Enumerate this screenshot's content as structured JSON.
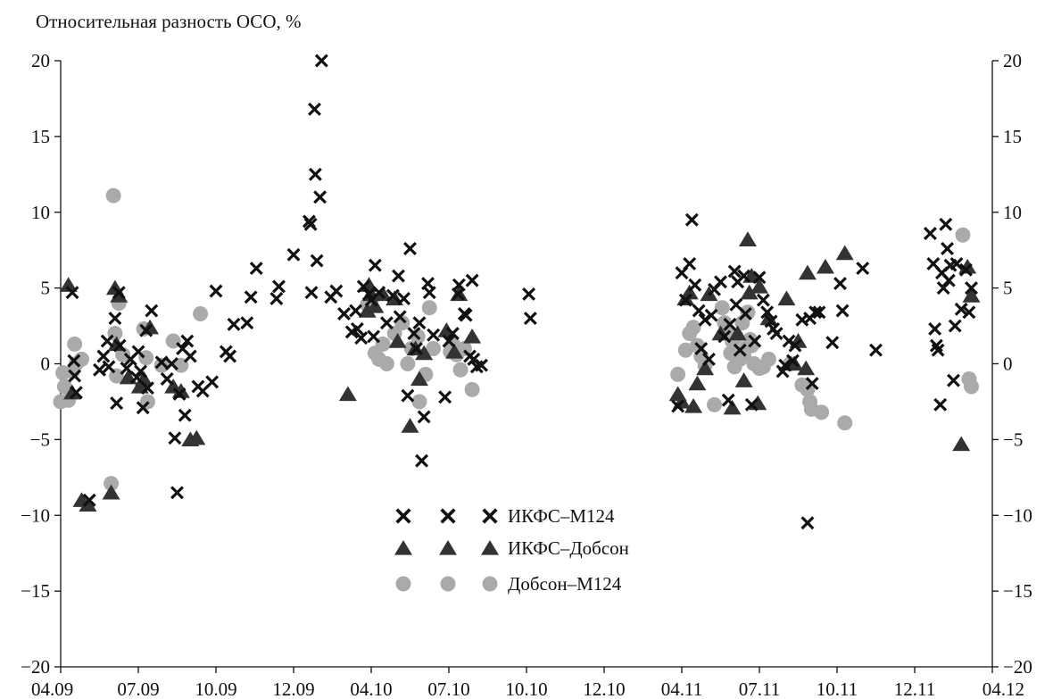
{
  "chart_data": {
    "type": "scatter",
    "title": "Относительная разность ОСО, %",
    "xlabel": "",
    "ylabel": "",
    "x_ticks": [
      "04.09",
      "07.09",
      "10.09",
      "12.09",
      "04.10",
      "07.10",
      "10.10",
      "12.10",
      "04.11",
      "07.11",
      "10.11",
      "12.11",
      "04.12"
    ],
    "xlim": [
      0,
      12
    ],
    "ylim": [
      -20,
      20
    ],
    "y_ticks": [
      -20,
      -15,
      -10,
      -5,
      0,
      5,
      10,
      15,
      20
    ],
    "y_tick_labels": [
      "−20",
      "−15",
      "−10",
      "−5",
      "0",
      "5",
      "10",
      "15",
      "20"
    ],
    "mirror_y_axis_right": true,
    "grid": false,
    "legend_position": "center",
    "series": [
      {
        "name": "ИКФС–М124",
        "marker": "cross",
        "color": "#111111",
        "points": [
          [
            0.15,
            4.7
          ],
          [
            0.17,
            0.2
          ],
          [
            0.18,
            -0.8
          ],
          [
            0.2,
            -1.9
          ],
          [
            0.37,
            -9.0
          ],
          [
            0.5,
            -0.4
          ],
          [
            0.55,
            0.5
          ],
          [
            0.6,
            1.5
          ],
          [
            0.62,
            -0.2
          ],
          [
            0.7,
            3.0
          ],
          [
            0.72,
            -2.6
          ],
          [
            0.75,
            4.7
          ],
          [
            0.76,
            1.2
          ],
          [
            0.85,
            -0.3
          ],
          [
            0.9,
            0.3
          ],
          [
            0.98,
            -0.9
          ],
          [
            1.0,
            0.8
          ],
          [
            1.03,
            -0.5
          ],
          [
            1.06,
            -2.9
          ],
          [
            1.1,
            2.2
          ],
          [
            1.12,
            -1.6
          ],
          [
            1.17,
            3.5
          ],
          [
            1.3,
            0.1
          ],
          [
            1.37,
            -1.0
          ],
          [
            1.43,
            0.0
          ],
          [
            1.47,
            -4.9
          ],
          [
            1.5,
            -8.5
          ],
          [
            1.53,
            -2.0
          ],
          [
            1.57,
            1.0
          ],
          [
            1.6,
            -3.4
          ],
          [
            1.63,
            1.5
          ],
          [
            1.67,
            0.5
          ],
          [
            1.77,
            -1.5
          ],
          [
            1.83,
            -1.8
          ],
          [
            1.95,
            -1.2
          ],
          [
            2.0,
            4.8
          ],
          [
            2.13,
            0.8
          ],
          [
            2.18,
            0.5
          ],
          [
            2.23,
            2.6
          ],
          [
            2.4,
            2.7
          ],
          [
            2.45,
            4.4
          ],
          [
            2.52,
            6.3
          ],
          [
            2.78,
            4.3
          ],
          [
            2.81,
            5.1
          ],
          [
            3.0,
            7.2
          ],
          [
            3.2,
            9.4
          ],
          [
            3.22,
            9.2
          ],
          [
            3.23,
            4.7
          ],
          [
            3.27,
            16.8
          ],
          [
            3.28,
            12.5
          ],
          [
            3.3,
            6.8
          ],
          [
            3.34,
            11.0
          ],
          [
            3.36,
            20.0
          ],
          [
            3.48,
            4.4
          ],
          [
            3.55,
            4.8
          ],
          [
            3.65,
            3.3
          ],
          [
            3.75,
            2.1
          ],
          [
            3.8,
            3.5
          ],
          [
            3.82,
            2.3
          ],
          [
            3.87,
            1.7
          ],
          [
            3.9,
            5.1
          ],
          [
            3.97,
            4.6
          ],
          [
            4.0,
            4.2
          ],
          [
            4.03,
            1.8
          ],
          [
            4.05,
            6.5
          ],
          [
            4.1,
            4.7
          ],
          [
            4.2,
            2.7
          ],
          [
            4.28,
            4.5
          ],
          [
            4.35,
            5.8
          ],
          [
            4.37,
            3.1
          ],
          [
            4.42,
            4.3
          ],
          [
            4.47,
            -2.1
          ],
          [
            4.5,
            7.6
          ],
          [
            4.55,
            2.0
          ],
          [
            4.58,
            1.0
          ],
          [
            4.62,
            2.7
          ],
          [
            4.65,
            -6.4
          ],
          [
            4.68,
            -3.5
          ],
          [
            4.73,
            5.3
          ],
          [
            4.75,
            4.7
          ],
          [
            4.8,
            1.9
          ],
          [
            4.95,
            -2.2
          ],
          [
            5.0,
            1.5
          ],
          [
            5.05,
            2.0
          ],
          [
            5.12,
            4.6
          ],
          [
            5.13,
            5.2
          ],
          [
            5.2,
            3.3
          ],
          [
            5.22,
            3.2
          ],
          [
            5.27,
            0.5
          ],
          [
            5.3,
            5.5
          ],
          [
            5.32,
            0.3
          ],
          [
            5.36,
            -0.2
          ],
          [
            5.42,
            -0.1
          ],
          [
            6.03,
            4.6
          ],
          [
            6.05,
            3.0
          ],
          [
            7.95,
            -2.8
          ],
          [
            8.0,
            6.0
          ],
          [
            8.05,
            4.2
          ],
          [
            8.1,
            6.6
          ],
          [
            8.13,
            9.5
          ],
          [
            8.17,
            5.2
          ],
          [
            8.22,
            3.5
          ],
          [
            8.25,
            1.0
          ],
          [
            8.3,
            2.9
          ],
          [
            8.35,
            0.3
          ],
          [
            8.38,
            3.2
          ],
          [
            8.42,
            4.9
          ],
          [
            8.5,
            5.4
          ],
          [
            8.55,
            1.8
          ],
          [
            8.6,
            -2.4
          ],
          [
            8.62,
            2.6
          ],
          [
            8.68,
            6.1
          ],
          [
            8.7,
            3.9
          ],
          [
            8.72,
            5.4
          ],
          [
            8.75,
            0.9
          ],
          [
            8.8,
            5.8
          ],
          [
            8.82,
            3.3
          ],
          [
            8.9,
            -2.7
          ],
          [
            8.94,
            1.5
          ],
          [
            9.0,
            5.7
          ],
          [
            9.05,
            4.2
          ],
          [
            9.1,
            3.4
          ],
          [
            9.15,
            2.8
          ],
          [
            9.18,
            2.3
          ],
          [
            9.22,
            2.0
          ],
          [
            9.3,
            -0.5
          ],
          [
            9.33,
            -0.1
          ],
          [
            9.38,
            1.5
          ],
          [
            9.43,
            0.2
          ],
          [
            9.46,
            1.2
          ],
          [
            9.55,
            2.9
          ],
          [
            9.62,
            -10.5
          ],
          [
            9.65,
            3.0
          ],
          [
            9.68,
            -1.3
          ],
          [
            9.72,
            3.4
          ],
          [
            9.77,
            3.4
          ],
          [
            9.94,
            1.4
          ],
          [
            10.04,
            5.3
          ],
          [
            10.07,
            3.5
          ],
          [
            10.33,
            6.3
          ],
          [
            10.5,
            0.9
          ],
          [
            11.2,
            8.6
          ],
          [
            11.24,
            6.6
          ],
          [
            11.26,
            2.3
          ],
          [
            11.28,
            1.2
          ],
          [
            11.3,
            0.9
          ],
          [
            11.33,
            -2.7
          ],
          [
            11.35,
            6.0
          ],
          [
            11.37,
            5.0
          ],
          [
            11.4,
            9.2
          ],
          [
            11.42,
            7.6
          ],
          [
            11.44,
            5.5
          ],
          [
            11.46,
            6.5
          ],
          [
            11.5,
            -1.1
          ],
          [
            11.52,
            2.5
          ],
          [
            11.54,
            6.6
          ],
          [
            11.6,
            3.6
          ],
          [
            11.66,
            6.2
          ],
          [
            11.7,
            3.4
          ],
          [
            11.73,
            5.0
          ]
        ]
      },
      {
        "name": "ИКФС–Добсон",
        "marker": "triangle",
        "color": "#333333",
        "points": [
          [
            0.1,
            5.2
          ],
          [
            0.15,
            -1.9
          ],
          [
            0.27,
            -9.0
          ],
          [
            0.35,
            -9.3
          ],
          [
            0.65,
            -8.5
          ],
          [
            0.7,
            5.0
          ],
          [
            0.72,
            1.3
          ],
          [
            0.75,
            4.5
          ],
          [
            0.87,
            -0.9
          ],
          [
            1.02,
            -1.5
          ],
          [
            1.07,
            -1.0
          ],
          [
            1.15,
            2.4
          ],
          [
            1.45,
            -1.5
          ],
          [
            1.55,
            -1.8
          ],
          [
            1.67,
            -5.0
          ],
          [
            1.75,
            -4.9
          ],
          [
            3.7,
            -2.0
          ],
          [
            3.95,
            3.5
          ],
          [
            3.97,
            5.2
          ],
          [
            4.0,
            4.6
          ],
          [
            4.05,
            3.8
          ],
          [
            4.15,
            4.6
          ],
          [
            4.3,
            4.3
          ],
          [
            4.34,
            1.5
          ],
          [
            4.5,
            -4.1
          ],
          [
            4.57,
            1.0
          ],
          [
            4.62,
            -1.0
          ],
          [
            4.68,
            0.7
          ],
          [
            4.97,
            2.2
          ],
          [
            5.07,
            0.8
          ],
          [
            5.13,
            4.6
          ],
          [
            5.3,
            1.8
          ],
          [
            7.95,
            -2.0
          ],
          [
            8.0,
            -2.5
          ],
          [
            8.05,
            4.3
          ],
          [
            8.1,
            4.7
          ],
          [
            8.15,
            -2.8
          ],
          [
            8.2,
            -1.3
          ],
          [
            8.3,
            -0.3
          ],
          [
            8.35,
            4.6
          ],
          [
            8.5,
            2.0
          ],
          [
            8.65,
            -2.9
          ],
          [
            8.72,
            2.0
          ],
          [
            8.8,
            -1.1
          ],
          [
            8.85,
            8.2
          ],
          [
            8.87,
            4.7
          ],
          [
            8.9,
            5.8
          ],
          [
            8.98,
            -2.6
          ],
          [
            9.0,
            5.1
          ],
          [
            9.12,
            3.0
          ],
          [
            9.35,
            4.3
          ],
          [
            9.45,
            0.0
          ],
          [
            9.5,
            1.5
          ],
          [
            9.6,
            -0.3
          ],
          [
            9.62,
            6.0
          ],
          [
            9.85,
            6.4
          ],
          [
            10.1,
            7.3
          ],
          [
            11.6,
            -5.3
          ],
          [
            11.68,
            6.4
          ],
          [
            11.73,
            4.5
          ]
        ]
      },
      {
        "name": "Добсон–М124",
        "marker": "circle",
        "color": "#aaaaaa",
        "points": [
          [
            0.0,
            -2.5
          ],
          [
            0.03,
            -0.6
          ],
          [
            0.05,
            -1.5
          ],
          [
            0.1,
            -2.4
          ],
          [
            0.15,
            -0.5
          ],
          [
            0.18,
            1.3
          ],
          [
            0.2,
            0.0
          ],
          [
            0.27,
            0.3
          ],
          [
            0.65,
            -7.9
          ],
          [
            0.68,
            11.1
          ],
          [
            0.7,
            2.0
          ],
          [
            0.72,
            -0.8
          ],
          [
            0.75,
            4.0
          ],
          [
            0.8,
            0.6
          ],
          [
            1.07,
            2.3
          ],
          [
            1.1,
            0.4
          ],
          [
            1.12,
            -2.5
          ],
          [
            1.3,
            -0.1
          ],
          [
            1.45,
            1.5
          ],
          [
            1.55,
            -0.1
          ],
          [
            1.8,
            3.3
          ],
          [
            3.95,
            3.9
          ],
          [
            4.0,
            4.2
          ],
          [
            4.05,
            0.7
          ],
          [
            4.1,
            0.3
          ],
          [
            4.15,
            1.3
          ],
          [
            4.2,
            0.0
          ],
          [
            4.3,
            2.0
          ],
          [
            4.4,
            2.7
          ],
          [
            4.47,
            0.0
          ],
          [
            4.52,
            1.0
          ],
          [
            4.6,
            1.8
          ],
          [
            4.62,
            -2.5
          ],
          [
            4.7,
            -0.7
          ],
          [
            4.75,
            3.7
          ],
          [
            4.8,
            1.0
          ],
          [
            5.02,
            0.8
          ],
          [
            5.05,
            1.3
          ],
          [
            5.1,
            0.6
          ],
          [
            5.15,
            -0.4
          ],
          [
            5.2,
            1.0
          ],
          [
            5.3,
            -1.7
          ],
          [
            7.95,
            -0.7
          ],
          [
            8.05,
            0.9
          ],
          [
            8.1,
            2.0
          ],
          [
            8.15,
            2.4
          ],
          [
            8.2,
            1.2
          ],
          [
            8.25,
            0.5
          ],
          [
            8.3,
            -0.1
          ],
          [
            8.42,
            -2.7
          ],
          [
            8.52,
            3.7
          ],
          [
            8.55,
            2.7
          ],
          [
            8.6,
            2.1
          ],
          [
            8.63,
            0.7
          ],
          [
            8.65,
            1.5
          ],
          [
            8.68,
            -0.2
          ],
          [
            8.7,
            1.8
          ],
          [
            8.75,
            0.3
          ],
          [
            8.78,
            2.7
          ],
          [
            8.8,
            0.5
          ],
          [
            8.82,
            1.0
          ],
          [
            8.85,
            3.4
          ],
          [
            8.88,
            1.6
          ],
          [
            8.9,
            1.2
          ],
          [
            8.93,
            0.0
          ],
          [
            9.0,
            -0.3
          ],
          [
            9.05,
            -0.2
          ],
          [
            9.12,
            0.3
          ],
          [
            9.4,
            0.0
          ],
          [
            9.55,
            -1.4
          ],
          [
            9.62,
            -1.7
          ],
          [
            9.65,
            -2.5
          ],
          [
            9.67,
            -3.0
          ],
          [
            9.8,
            -3.2
          ],
          [
            10.1,
            -3.9
          ],
          [
            11.62,
            8.5
          ],
          [
            11.7,
            -1.0
          ],
          [
            11.73,
            -1.5
          ]
        ]
      }
    ]
  }
}
